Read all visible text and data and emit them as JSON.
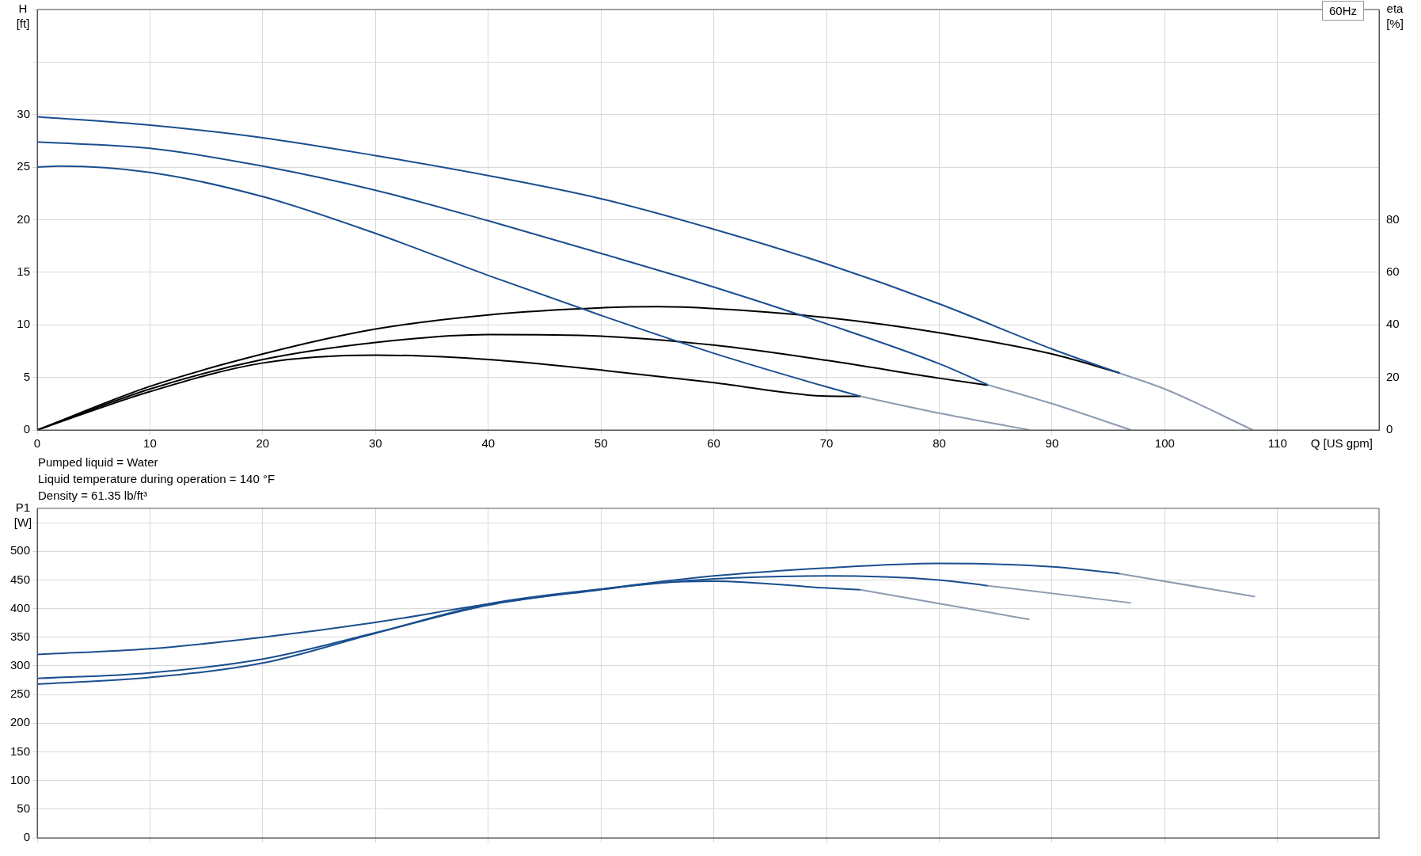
{
  "chart_data": [
    {
      "type": "line",
      "xlabel": "Q [US gpm]",
      "ylabel": "H [ft]",
      "y2label": "eta [%]",
      "xlim": [
        0,
        119
      ],
      "xticks": [
        0,
        10,
        20,
        30,
        40,
        50,
        60,
        70,
        80,
        90,
        100,
        110
      ],
      "ylim": [
        0,
        40
      ],
      "yticks": [
        0,
        5,
        10,
        15,
        20,
        25,
        30,
        {
          "value": 35,
          "label": null
        },
        {
          "value": 40,
          "label": null
        }
      ],
      "y2lim": [
        0,
        160
      ],
      "y2ticks": [
        0,
        20,
        40,
        60,
        80
      ],
      "grid": true,
      "legend": false,
      "marker": "none",
      "annotations": [
        "60Hz",
        "Pumped liquid = Water",
        "Liquid temperature during operation = 140 °F",
        "Density = 61.35 lb/ft³"
      ],
      "series": [
        {
          "color": "#1a4f8f",
          "x": [
            0,
            10,
            20,
            30,
            40,
            50,
            60,
            70,
            80,
            90,
            96
          ],
          "values": [
            29.8,
            29.0,
            27.8,
            26.1,
            24.2,
            22.0,
            19.1,
            15.8,
            12.0,
            7.7,
            5.4
          ]
        },
        {
          "color": "#1a4f8f",
          "x": [
            0,
            10,
            20,
            30,
            40,
            50,
            60,
            70,
            80,
            84.3
          ],
          "values": [
            27.4,
            26.8,
            25.1,
            22.8,
            19.9,
            16.8,
            13.6,
            10.1,
            6.3,
            4.3
          ]
        },
        {
          "color": "#1a4f8f",
          "x": [
            0,
            2,
            10,
            20,
            30,
            40,
            50,
            60,
            70,
            73
          ],
          "values": [
            25.0,
            25.1,
            24.5,
            22.2,
            18.7,
            14.7,
            10.9,
            7.3,
            4.1,
            3.2
          ]
        },
        {
          "color": "#8c9bb0",
          "x": [
            96,
            100,
            107.8
          ],
          "values": [
            5.4,
            3.9,
            0
          ]
        },
        {
          "color": "#8c9bb0",
          "x": [
            84.3,
            90,
            97
          ],
          "values": [
            4.3,
            2.5,
            0
          ]
        },
        {
          "color": "#8c9bb0",
          "x": [
            73,
            80,
            88
          ],
          "values": [
            3.2,
            1.6,
            0
          ]
        },
        {
          "color": "#000000",
          "axis": "y2",
          "x": [
            0,
            10,
            20,
            30,
            40,
            50,
            55,
            60,
            70,
            80,
            90,
            96
          ],
          "values": [
            0,
            16.6,
            28.9,
            38.4,
            43.8,
            46.5,
            46.9,
            46.2,
            42.8,
            37.0,
            28.9,
            21.7
          ]
        },
        {
          "color": "#000000",
          "axis": "y2",
          "x": [
            0,
            10,
            20,
            30,
            40,
            50,
            60,
            70,
            80,
            84.3
          ],
          "values": [
            0,
            15.6,
            26.8,
            33.3,
            36.3,
            35.7,
            32.3,
            26.5,
            19.7,
            17.0
          ]
        },
        {
          "color": "#000000",
          "axis": "y2",
          "x": [
            0,
            10,
            20,
            30,
            40,
            50,
            60,
            70,
            73
          ],
          "values": [
            0,
            14.6,
            25.5,
            28.5,
            26.8,
            22.8,
            18.0,
            12.9,
            12.8
          ]
        }
      ]
    },
    {
      "type": "line",
      "ylabel": "P1 [W]",
      "xlim": [
        0,
        119
      ],
      "xticks": [
        0,
        10,
        20,
        30,
        40,
        50,
        60,
        70,
        80,
        90,
        100,
        110
      ],
      "ylim": [
        0,
        575
      ],
      "yticks": [
        0,
        50,
        100,
        150,
        200,
        250,
        300,
        350,
        400,
        450,
        500,
        {
          "value": 550,
          "label": null
        }
      ],
      "tick_labels": "y",
      "grid": true,
      "legend": false,
      "marker": "none",
      "series": [
        {
          "color": "#1a4f8f",
          "x": [
            0,
            10,
            20,
            30,
            40,
            50,
            60,
            70,
            80,
            90,
            96
          ],
          "values": [
            320,
            330,
            350,
            376,
            408,
            434,
            457,
            471,
            479,
            473,
            461
          ]
        },
        {
          "color": "#1a4f8f",
          "x": [
            0,
            10,
            20,
            30,
            40,
            50,
            60,
            70,
            80,
            84.3
          ],
          "values": [
            278,
            288,
            312,
            358,
            408,
            434,
            452,
            457,
            450,
            440
          ]
        },
        {
          "color": "#1a4f8f",
          "x": [
            0,
            10,
            20,
            30,
            40,
            50,
            55,
            60,
            70,
            73
          ],
          "values": [
            268,
            280,
            305,
            357,
            406,
            433,
            445,
            448,
            436,
            433
          ]
        },
        {
          "color": "#8c9bb0",
          "x": [
            96,
            108
          ],
          "values": [
            461,
            421
          ]
        },
        {
          "color": "#8c9bb0",
          "x": [
            84.3,
            97
          ],
          "values": [
            440,
            410
          ]
        },
        {
          "color": "#8c9bb0",
          "x": [
            73,
            88
          ],
          "values": [
            433,
            381
          ]
        }
      ]
    }
  ]
}
